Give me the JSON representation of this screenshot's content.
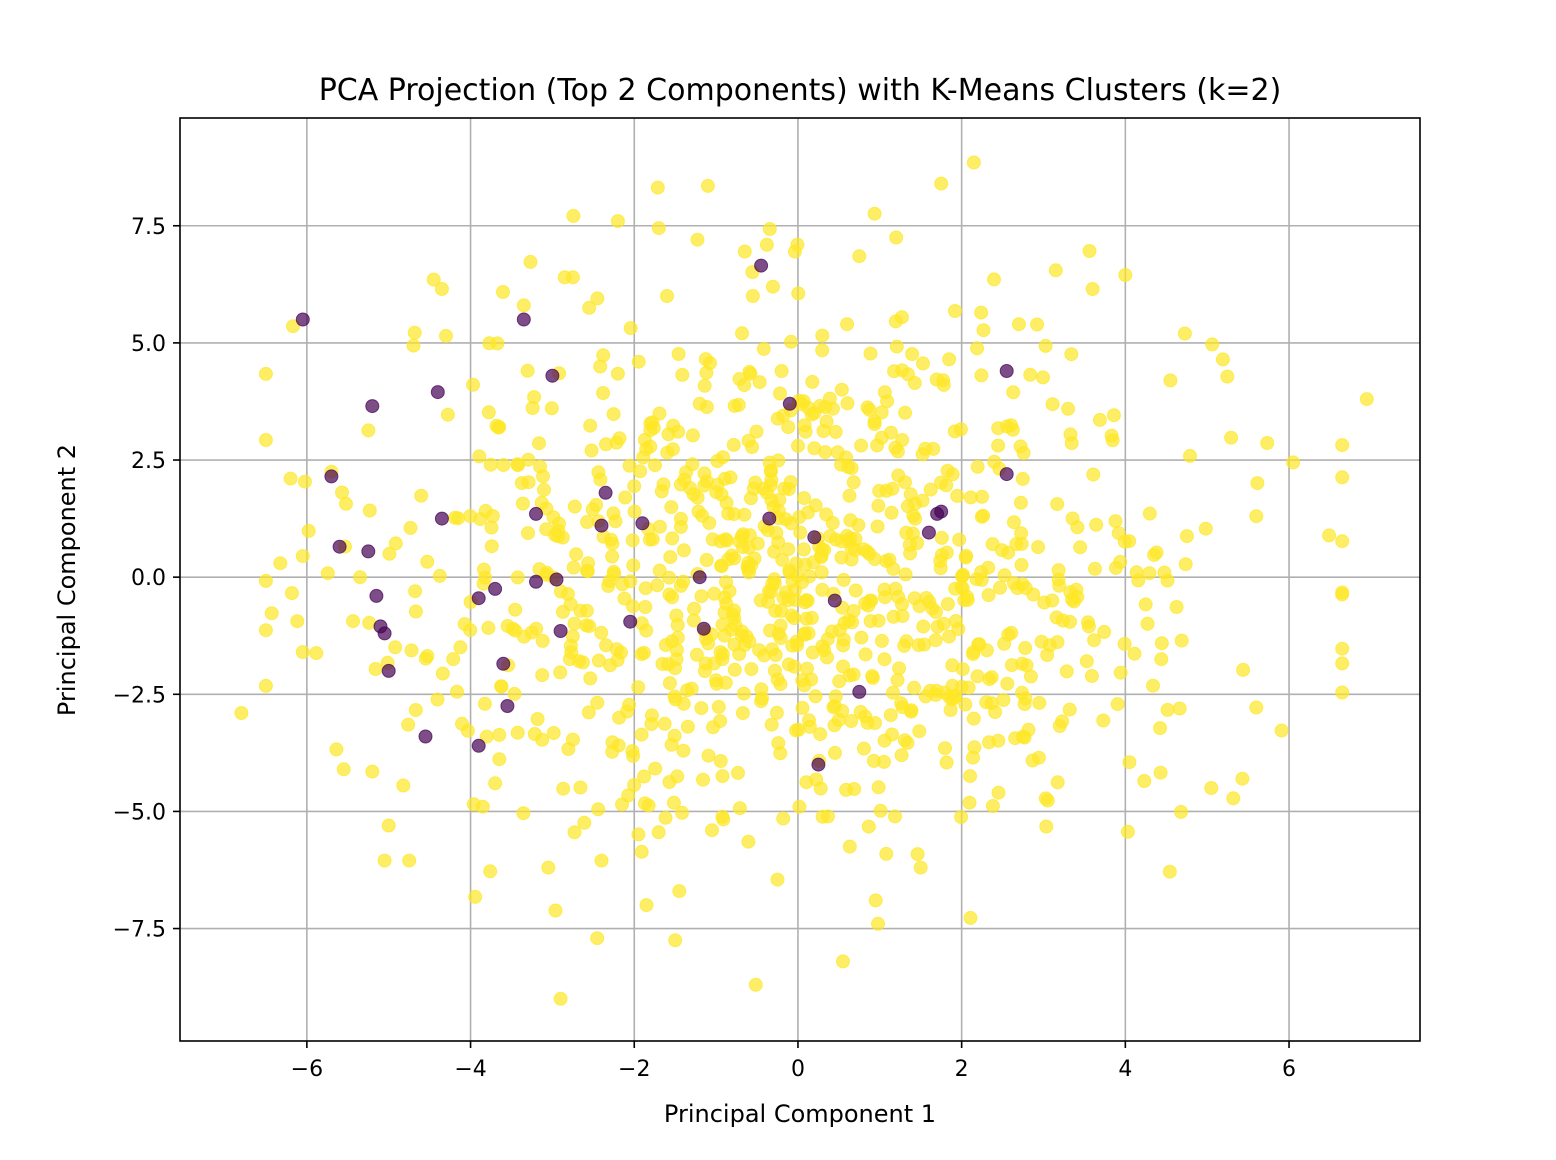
{
  "chart_data": {
    "type": "scatter",
    "title": "PCA Projection (Top 2 Components) with K-Means Clusters (k=2)",
    "xlabel": "Principal Component 1",
    "ylabel": "Principal Component 2",
    "xlim": [
      -7.55,
      7.6
    ],
    "ylim": [
      -9.9,
      9.8
    ],
    "xticks": [
      -6,
      -4,
      -2,
      0,
      2,
      4,
      6
    ],
    "xtick_labels": [
      "−6",
      "−4",
      "−2",
      "0",
      "2",
      "4",
      "6"
    ],
    "yticks": [
      -7.5,
      -5.0,
      -2.5,
      0.0,
      2.5,
      5.0,
      7.5
    ],
    "ytick_labels": [
      "−7.5",
      "−5.0",
      "−2.5",
      "0.0",
      "2.5",
      "5.0",
      "7.5"
    ],
    "grid": true,
    "legend": "none",
    "series": [
      {
        "cluster": 1,
        "color": "#fde725",
        "alpha": 0.7,
        "generated_points": 1000,
        "x_range": [
          -6.8,
          6.95
        ],
        "y_range": [
          -9.0,
          8.85
        ],
        "x": [
          -6.8,
          -6.05,
          -6.05,
          -5.7,
          -5.55,
          -5.35,
          -5.2,
          -5.05,
          -5.0,
          -4.75,
          -4.45,
          -4.35,
          -4.3,
          -3.85,
          -3.7,
          -3.35,
          -3.05,
          -2.9,
          -2.85,
          -2.75,
          -2.55,
          -2.45,
          -2.4,
          -2.2,
          -2.15,
          -1.85,
          -1.7,
          -1.6,
          -1.5,
          -1.45,
          -1.1,
          -1.05,
          -0.65,
          -0.55,
          -0.2,
          0.2,
          0.55,
          0.6,
          0.75,
          0.95,
          1.2,
          1.5,
          1.75,
          2.15,
          2.45,
          2.7,
          3.15,
          3.6,
          4.0,
          4.05,
          4.55,
          5.05,
          5.6,
          6.05,
          6.95
        ],
        "y": [
          -2.9,
          0.45,
          -1.6,
          2.25,
          -4.1,
          0.0,
          -4.15,
          -6.05,
          -5.3,
          -6.05,
          6.35,
          6.15,
          5.15,
          -4.9,
          -4.4,
          5.8,
          -6.2,
          -9.0,
          6.4,
          6.4,
          5.75,
          5.95,
          -6.05,
          7.6,
          -4.85,
          -7.0,
          7.45,
          6.0,
          -7.75,
          -6.7,
          8.35,
          -5.4,
          6.95,
          6.0,
          4.4,
          3.5,
          -8.2,
          5.4,
          6.85,
          -6.9,
          7.25,
          -6.2,
          8.4,
          8.85,
          -4.6,
          5.4,
          6.55,
          6.15,
          6.45,
          -3.95,
          4.2,
          -4.5,
          1.3,
          2.45,
          3.8
        ]
      },
      {
        "cluster": 0,
        "color": "#440154",
        "alpha": 0.7,
        "x": [
          -6.05,
          -5.7,
          -5.6,
          -5.25,
          -5.2,
          -5.15,
          -5.1,
          -5.05,
          -5.0,
          -4.55,
          -4.4,
          -4.35,
          -3.9,
          -3.9,
          -3.7,
          -3.6,
          -3.55,
          -3.35,
          -3.2,
          -3.2,
          -3.0,
          -2.95,
          -2.9,
          -2.4,
          -2.35,
          -2.05,
          -1.9,
          -1.2,
          -1.15,
          -0.45,
          -0.35,
          -0.1,
          0.2,
          0.25,
          0.45,
          0.75,
          1.6,
          1.7,
          1.75,
          2.55,
          2.55
        ],
        "y": [
          5.5,
          2.15,
          0.65,
          0.55,
          3.65,
          -0.4,
          -1.05,
          -1.2,
          -2.0,
          -3.4,
          3.95,
          1.25,
          -0.45,
          -3.6,
          -0.25,
          -1.85,
          -2.75,
          5.5,
          1.35,
          -0.1,
          4.3,
          -0.05,
          -1.15,
          1.1,
          1.8,
          -0.95,
          1.15,
          0.0,
          -1.1,
          6.65,
          1.25,
          3.7,
          0.85,
          -4.0,
          -0.5,
          -2.45,
          0.95,
          1.35,
          1.4,
          4.4,
          2.2
        ]
      }
    ]
  }
}
